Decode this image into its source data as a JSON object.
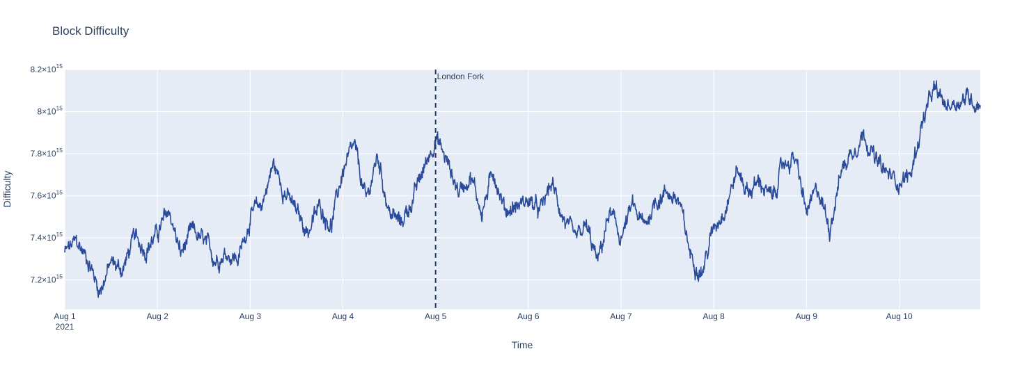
{
  "chart_data": {
    "type": "line",
    "title": "Block Difficulty",
    "xlabel": "Time",
    "ylabel": "Difficulty",
    "x_start": "2021-08-01",
    "x_end": "2021-08-10T21:00",
    "x_ticks": [
      {
        "label": "Aug 1",
        "sublabel": "2021",
        "day": 0
      },
      {
        "label": "Aug 2",
        "day": 1
      },
      {
        "label": "Aug 3",
        "day": 2
      },
      {
        "label": "Aug 4",
        "day": 3
      },
      {
        "label": "Aug 5",
        "day": 4
      },
      {
        "label": "Aug 6",
        "day": 5
      },
      {
        "label": "Aug 7",
        "day": 6
      },
      {
        "label": "Aug 8",
        "day": 7
      },
      {
        "label": "Aug 9",
        "day": 8
      },
      {
        "label": "Aug 10",
        "day": 9
      }
    ],
    "y_ticks": [
      {
        "mant": "7.2",
        "exp": "15",
        "value": 7200000000000000.0
      },
      {
        "mant": "7.4",
        "exp": "15",
        "value": 7400000000000000.0
      },
      {
        "mant": "7.6",
        "exp": "15",
        "value": 7600000000000000.0
      },
      {
        "mant": "7.8",
        "exp": "15",
        "value": 7800000000000000.0
      },
      {
        "mant": "8",
        "exp": "15",
        "value": 8000000000000000.0
      },
      {
        "mant": "8.2",
        "exp": "15",
        "value": 8200000000000000.0
      }
    ],
    "ylim": [
      7060000000000000.0,
      8200000000000000.0
    ],
    "grid": true,
    "line_color": "#2a4a9a",
    "annotation": {
      "label": "London Fork",
      "x": "2021-08-05"
    },
    "series": [
      {
        "x": [
          "2021-08-01T00:00",
          "2021-08-01T03:00",
          "2021-08-01T06:00",
          "2021-08-01T09:00",
          "2021-08-01T12:00",
          "2021-08-01T15:00",
          "2021-08-01T18:00",
          "2021-08-01T21:00",
          "2021-08-02T00:00",
          "2021-08-02T03:00",
          "2021-08-02T06:00",
          "2021-08-02T09:00",
          "2021-08-02T12:00",
          "2021-08-02T15:00",
          "2021-08-02T18:00",
          "2021-08-02T21:00",
          "2021-08-03T00:00",
          "2021-08-03T03:00",
          "2021-08-03T06:00",
          "2021-08-03T09:00",
          "2021-08-03T12:00",
          "2021-08-03T15:00",
          "2021-08-03T18:00",
          "2021-08-03T21:00",
          "2021-08-04T00:00",
          "2021-08-04T03:00",
          "2021-08-04T06:00",
          "2021-08-04T09:00",
          "2021-08-04T12:00",
          "2021-08-04T15:00",
          "2021-08-04T18:00",
          "2021-08-04T21:00",
          "2021-08-05T00:00",
          "2021-08-05T03:00",
          "2021-08-05T06:00",
          "2021-08-05T09:00",
          "2021-08-05T12:00",
          "2021-08-05T15:00",
          "2021-08-05T18:00",
          "2021-08-05T21:00",
          "2021-08-06T00:00",
          "2021-08-06T03:00",
          "2021-08-06T06:00",
          "2021-08-06T09:00",
          "2021-08-06T12:00",
          "2021-08-06T15:00",
          "2021-08-06T18:00",
          "2021-08-06T21:00",
          "2021-08-07T00:00",
          "2021-08-07T03:00",
          "2021-08-07T06:00",
          "2021-08-07T09:00",
          "2021-08-07T12:00",
          "2021-08-07T15:00",
          "2021-08-07T18:00",
          "2021-08-07T21:00",
          "2021-08-08T00:00",
          "2021-08-08T03:00",
          "2021-08-08T06:00",
          "2021-08-08T09:00",
          "2021-08-08T12:00",
          "2021-08-08T15:00",
          "2021-08-08T18:00",
          "2021-08-08T21:00",
          "2021-08-09T00:00",
          "2021-08-09T03:00",
          "2021-08-09T06:00",
          "2021-08-09T09:00",
          "2021-08-09T12:00",
          "2021-08-09T15:00",
          "2021-08-09T18:00",
          "2021-08-09T21:00",
          "2021-08-10T00:00",
          "2021-08-10T03:00",
          "2021-08-10T06:00",
          "2021-08-10T09:00",
          "2021-08-10T12:00",
          "2021-08-10T15:00",
          "2021-08-10T18:00",
          "2021-08-10T21:00"
        ],
        "y": [
          7330000000000000.0,
          7380000000000000.0,
          7300000000000000.0,
          7150000000000000.0,
          7280000000000000.0,
          7250000000000000.0,
          7400000000000000.0,
          7350000000000000.0,
          7420000000000000.0,
          7530000000000000.0,
          7320000000000000.0,
          7430000000000000.0,
          7380000000000000.0,
          7300000000000000.0,
          7330000000000000.0,
          7300000000000000.0,
          7500000000000000.0,
          7560000000000000.0,
          7750000000000000.0,
          7620000000000000.0,
          7520000000000000.0,
          7430000000000000.0,
          7550000000000000.0,
          7460000000000000.0,
          7720000000000000.0,
          7830000000000000.0,
          7570000000000000.0,
          7790000000000000.0,
          7520000000000000.0,
          7470000000000000.0,
          7580000000000000.0,
          7730000000000000.0,
          7880000000000000.0,
          7760000000000000.0,
          7620000000000000.0,
          7700000000000000.0,
          7520000000000000.0,
          7720000000000000.0,
          7530000000000000.0,
          7550000000000000.0,
          7580000000000000.0,
          7520000000000000.0,
          7660000000000000.0,
          7500000000000000.0,
          7380000000000000.0,
          7450000000000000.0,
          7280000000000000.0,
          7520000000000000.0,
          7400000000000000.0,
          7550000000000000.0,
          7450000000000000.0,
          7580000000000000.0,
          7620000000000000.0,
          7570000000000000.0,
          7320000000000000.0,
          7240000000000000.0,
          7450000000000000.0,
          7550000000000000.0,
          7720000000000000.0,
          7620000000000000.0,
          7670000000000000.0,
          7580000000000000.0,
          7750000000000000.0,
          7780000000000000.0,
          7520000000000000.0,
          7630000000000000.0,
          7450000000000000.0,
          7720000000000000.0,
          7820000000000000.0,
          7900000000000000.0,
          7760000000000000.0,
          7700000000000000.0,
          7670000000000000.0,
          7700000000000000.0,
          7950000000000000.0,
          8100000000000000.0,
          8030000000000000.0,
          8050000000000000.0,
          8070000000000000.0,
          8030000000000000.0
        ]
      }
    ]
  }
}
